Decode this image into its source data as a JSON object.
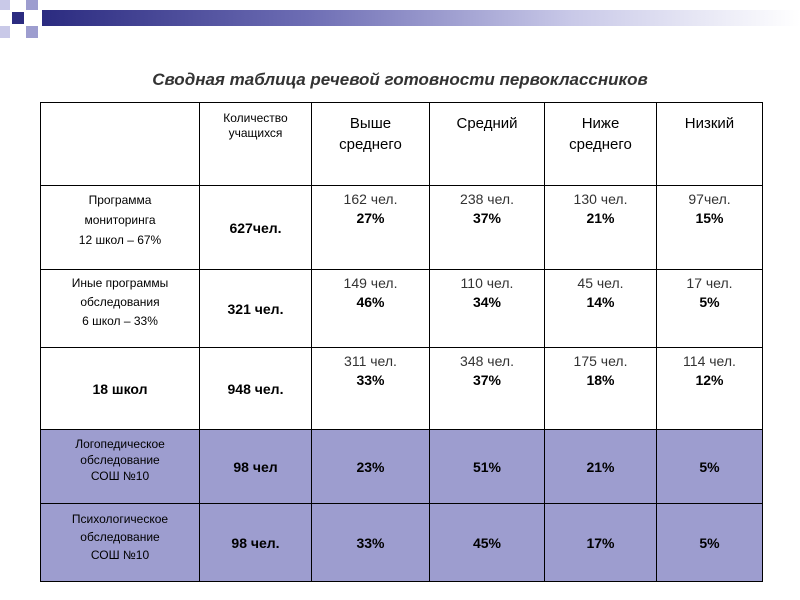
{
  "title": "Сводная таблица речевой готовности первоклассников",
  "header": {
    "count_col": [
      "Количество",
      "учащихся"
    ],
    "cols": [
      [
        "Выше",
        "среднего"
      ],
      [
        "Средний"
      ],
      [
        "Ниже",
        "среднего"
      ],
      [
        "Низкий"
      ]
    ]
  },
  "rows": [
    {
      "label": [
        "Программа",
        "мониторинга",
        "12 школ – 67%"
      ],
      "count": "627чел.",
      "cells": [
        {
          "n": "162 чел.",
          "p": "27%"
        },
        {
          "n": "238 чел.",
          "p": "37%"
        },
        {
          "n": "130 чел.",
          "p": "21%"
        },
        {
          "n": "97чел.",
          "p": "15%"
        }
      ]
    },
    {
      "label": [
        "Иные программы",
        "обследования",
        "6 школ – 33%"
      ],
      "count": "321 чел.",
      "cells": [
        {
          "n": "149 чел.",
          "p": "46%"
        },
        {
          "n": "110 чел.",
          "p": "34%"
        },
        {
          "n": "45 чел.",
          "p": "14%"
        },
        {
          "n": "17 чел.",
          "p": "5%"
        }
      ]
    },
    {
      "label": [
        "18 школ"
      ],
      "count": "948 чел.",
      "cells": [
        {
          "n": "311 чел.",
          "p": "33%"
        },
        {
          "n": "348 чел.",
          "p": "37%"
        },
        {
          "n": "175 чел.",
          "p": "18%"
        },
        {
          "n": "114 чел.",
          "p": "12%"
        }
      ]
    }
  ],
  "shaded_rows": [
    {
      "label": [
        "Логопедическое",
        "обследование",
        "СОШ №10"
      ],
      "count": "98 чел",
      "cells": [
        "23%",
        "51%",
        "21%",
        "5%"
      ]
    },
    {
      "label": [
        "Психологическое",
        "обследование",
        "СОШ №10"
      ],
      "count": "98 чел.",
      "cells": [
        "33%",
        "45%",
        "17%",
        "5%"
      ]
    }
  ],
  "colors": {
    "shaded_row": "#9d9dcf",
    "stripe": "#2b2b80"
  }
}
